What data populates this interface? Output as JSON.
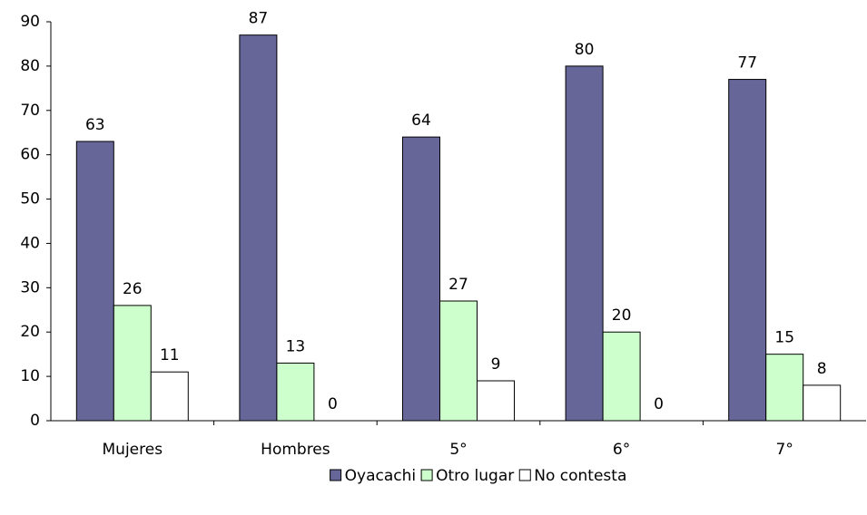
{
  "chart_data": {
    "type": "bar",
    "categories": [
      "Mujeres",
      "Hombres",
      "5°",
      "6°",
      "7°"
    ],
    "series": [
      {
        "name": "Oyacachi",
        "color": "#666699",
        "values": [
          63,
          87,
          64,
          80,
          77
        ]
      },
      {
        "name": "Otro lugar",
        "color": "#ccffcc",
        "values": [
          26,
          13,
          27,
          20,
          15
        ]
      },
      {
        "name": "No contesta",
        "color": "#ffffff",
        "values": [
          11,
          0,
          9,
          0,
          8
        ]
      }
    ],
    "ylim": [
      0,
      90
    ],
    "yticks": [
      0,
      10,
      20,
      30,
      40,
      50,
      60,
      70,
      80,
      90
    ],
    "grid": false,
    "legend": "bottom"
  }
}
